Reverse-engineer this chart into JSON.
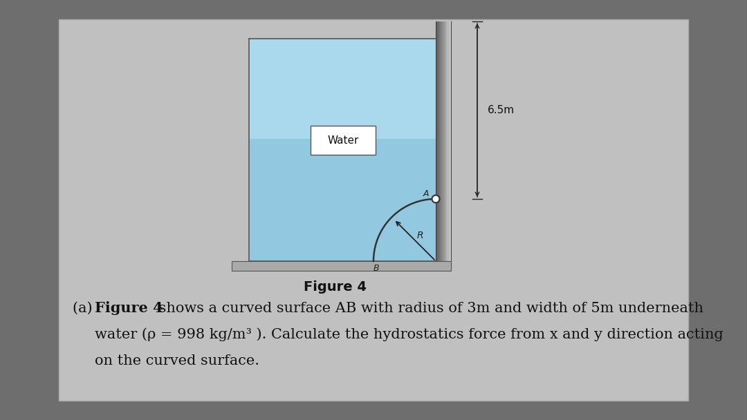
{
  "bg_outer": "#6e6e6e",
  "bg_inner": "#c0c0c0",
  "water_color_top": "#a8d4e8",
  "water_color_bot": "#7ab8d4",
  "wall_color_left": "#aaaaaa",
  "wall_color_right": "#444444",
  "text_water": "Water",
  "text_label_65": "6.5m",
  "text_R": "R",
  "text_B": "B",
  "text_A": "A",
  "figure_caption": "Figure 4",
  "q_pre": "(a) ",
  "q_bold": "Figure 4",
  "q_rest1": " shows a curved surface AB with radius of 3m and width of 5m underneath",
  "question_line2": "water (ρ = 998 kg/m³ ). Calculate the hydrostatics force from x and y direction acting",
  "question_line3": "on the curved surface.",
  "caption_fontsize": 14,
  "question_fontsize": 15
}
